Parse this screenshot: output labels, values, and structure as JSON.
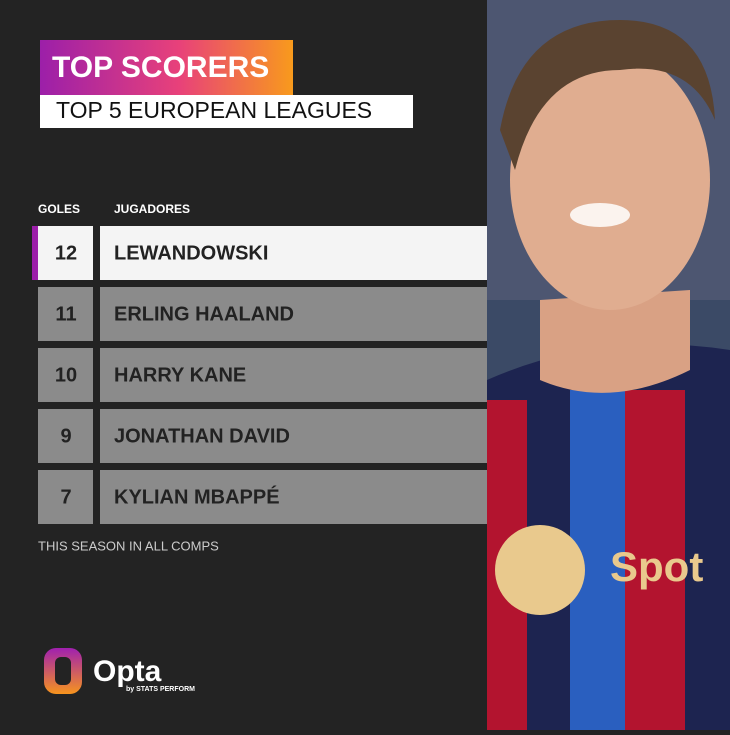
{
  "header": {
    "title": "TOP SCORERS",
    "subtitle": "TOP 5 EUROPEAN LEAGUES"
  },
  "table": {
    "columns": [
      "GOLES",
      "JUGADORES"
    ],
    "rows": [
      [
        12,
        "LEWANDOWSKI"
      ],
      [
        11,
        "ERLING HAALAND"
      ],
      [
        10,
        "HARRY KANE"
      ],
      [
        9,
        "JONATHAN DAVID"
      ],
      [
        7,
        "KYLIAN MBAPPÉ"
      ]
    ]
  },
  "footnote": "THIS SEASON IN ALL COMPS",
  "logo": {
    "name": "Opta",
    "tagline": "by STATS PERFORM"
  }
}
